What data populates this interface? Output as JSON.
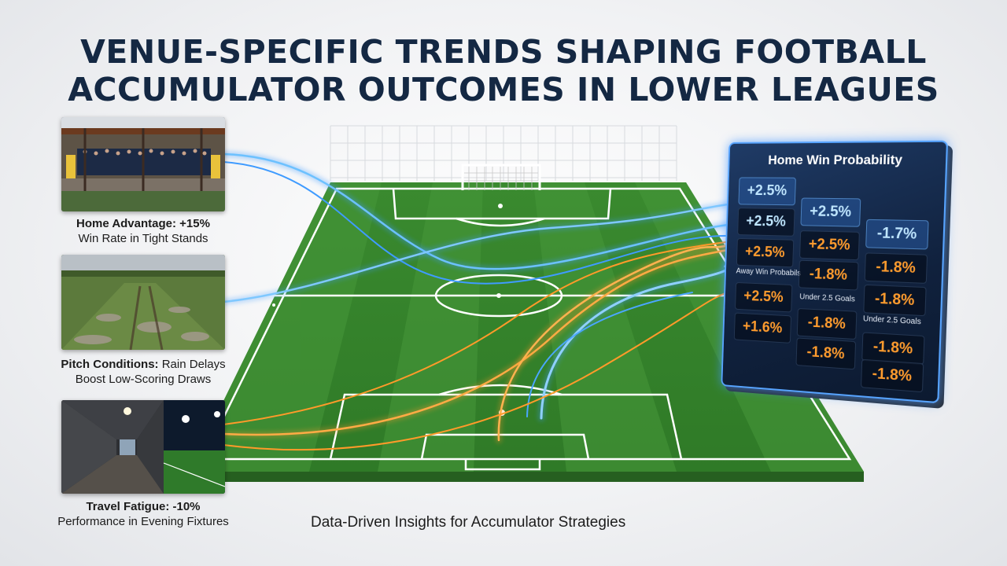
{
  "title": {
    "line1": "VENUE-SPECIFIC TRENDS SHAPING FOOTBALL",
    "line2": "ACCUMULATOR OUTCOMES IN LOWER LEAGUES"
  },
  "cards": [
    {
      "head": "Home Advantage: +15%",
      "sub": "Win Rate in Tight Stands"
    },
    {
      "head": "Pitch Conditions:",
      "head_rest": " Rain Delays",
      "sub": "Boost Low-Scoring Draws"
    },
    {
      "head": "Travel Fatigue: -10%",
      "sub": "Performance in Evening Fixtures"
    }
  ],
  "tagline": "Data-Driven Insights for Accumulator Strategies",
  "panel": {
    "title": "Home Win Probability",
    "rows": [
      [
        "+2.5%",
        "",
        ""
      ],
      [
        "+2.5%",
        "+2.5%",
        "-1.7%"
      ],
      [
        "+2.5%",
        "+2.5%",
        "-1.8%"
      ],
      [
        "+2.5%",
        "-1.8%",
        "-1.8%"
      ],
      [
        "+1.6%",
        "-1.8%",
        "-1.8%"
      ],
      [
        "",
        "-1.8%",
        "-1.8%"
      ]
    ],
    "labels": {
      "away": "Away Win Probabils",
      "under_mid": "Under 2.5 Goals",
      "under_right": "Under 2.5 Goals"
    },
    "colors": {
      "accent": "#57a4ff",
      "orange": "#ff9c2e",
      "blue_text": "#bfe6ff"
    }
  },
  "colors": {
    "title": "#142843",
    "pitch": "#3f8a2e",
    "flow_blue": "#3f9bff",
    "flow_orange": "#ff9a2a"
  }
}
